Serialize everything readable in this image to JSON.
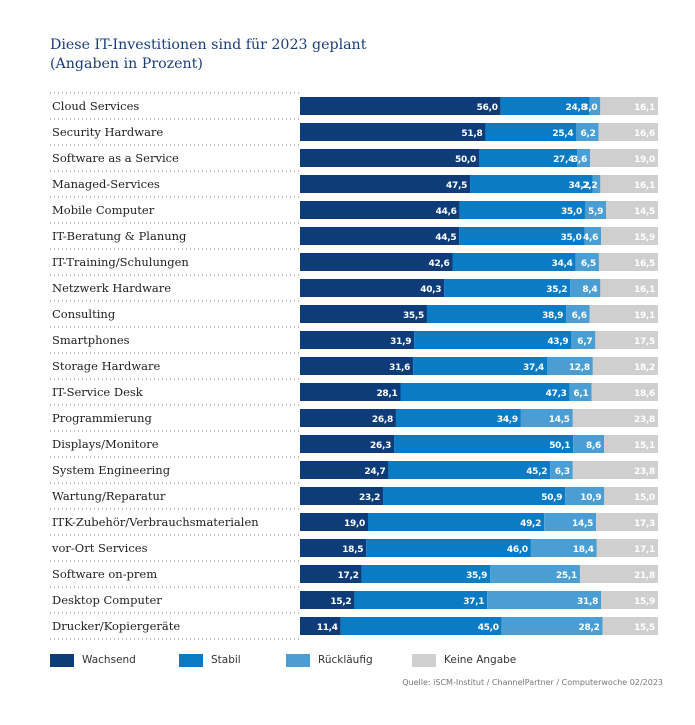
{
  "title_lines": [
    "Diese IT-Investitionen sind für 2023 geplant",
    "(Angaben in Prozent)"
  ],
  "colors": {
    "wachsend": "#0d3c78",
    "stabil": "#0a7bc4",
    "ruecklaeufig": "#4a9ed4",
    "keine_angabe": "#cfcfcf",
    "title": "#1a3e7a",
    "dots": "#8a8a8a"
  },
  "chart_data": {
    "type": "bar",
    "orientation": "horizontal",
    "stacked": true,
    "normalized": true,
    "title": "Diese IT-Investitionen sind für 2023 geplant",
    "subtitle": "(Angaben in Prozent)",
    "xlim": [
      0,
      100
    ],
    "categories": [
      "Cloud Services",
      "Security Hardware",
      "Software as a Service",
      "Managed-Services",
      "Mobile Computer",
      "IT-Beratung & Planung",
      "IT-Training/Schulungen",
      "Netzwerk Hardware",
      "Consulting",
      "Smartphones",
      "Storage Hardware",
      "IT-Service Desk",
      "Programmierung",
      "Displays/Monitore",
      "System Engineering",
      "Wartung/Reparatur",
      "ITK-Zubehör/Verbrauchsmaterialen",
      "vor-Ort Services",
      "Software on-prem",
      "Desktop Computer",
      "Drucker/Kopiergeräte"
    ],
    "series": [
      {
        "name": "Wachsend",
        "key": "wachsend",
        "labels": [
          "56,0",
          "51,8",
          "50,0",
          "47,5",
          "44,6",
          "44,5",
          "42,6",
          "40,3",
          "35,5",
          "31,9",
          "31,6",
          "28,1",
          "26,8",
          "26,3",
          "24,7",
          "23,2",
          "19,0",
          "18,5",
          "17,2",
          "15,2",
          "11,4"
        ],
        "values": [
          56.0,
          51.8,
          50.0,
          47.5,
          44.6,
          44.5,
          42.6,
          40.3,
          35.5,
          31.9,
          31.6,
          28.1,
          26.8,
          26.3,
          24.7,
          23.2,
          19.0,
          18.5,
          17.2,
          15.2,
          11.4
        ]
      },
      {
        "name": "Stabil",
        "key": "stabil",
        "labels": [
          "24,8",
          "25,4",
          "27,4",
          "34,2",
          "35,0",
          "35,0",
          "34,4",
          "35,2",
          "38,9",
          "43,9",
          "37,4",
          "47,3",
          "34,9",
          "50,1",
          "45,2",
          "50,9",
          "49,2",
          "46,0",
          "35,9",
          "37,1",
          "45,0"
        ],
        "values": [
          24.8,
          25.4,
          27.4,
          34.2,
          35.0,
          35.0,
          34.4,
          35.2,
          38.9,
          43.9,
          37.4,
          47.3,
          34.9,
          50.1,
          45.2,
          50.9,
          49.2,
          46.0,
          35.9,
          37.1,
          45.0
        ]
      },
      {
        "name": "Rückläufig",
        "key": "ruecklaeufig",
        "labels": [
          "3,0",
          "6,2",
          "3,6",
          "2,2",
          "5,9",
          "4,6",
          "6,5",
          "8,4",
          "6,6",
          "6,7",
          "12,8",
          "6,1",
          "14,5",
          "8,6",
          "6,3",
          "10,9",
          "14,5",
          "18,4",
          "25,1",
          "31,8",
          "28,2"
        ],
        "values": [
          3.0,
          6.2,
          3.6,
          2.2,
          5.9,
          4.6,
          6.5,
          8.4,
          6.6,
          6.7,
          12.8,
          6.1,
          14.5,
          8.6,
          6.3,
          10.9,
          14.5,
          18.4,
          25.1,
          31.8,
          28.2
        ]
      },
      {
        "name": "Keine Angabe",
        "key": "keine_angabe",
        "labels": [
          "16,1",
          "16,6",
          "19,0",
          "16,1",
          "14,5",
          "15,9",
          "16,5",
          "16,1",
          "19,1",
          "17,5",
          "18,2",
          "18,6",
          "23,8",
          "15,1",
          "23,8",
          "15,0",
          "17,3",
          "17,1",
          "21,8",
          "15,9",
          "15,5"
        ],
        "values": [
          16.1,
          16.6,
          19.0,
          16.1,
          14.5,
          15.9,
          16.5,
          16.1,
          19.1,
          17.5,
          18.2,
          18.6,
          23.8,
          15.1,
          23.8,
          15.0,
          17.3,
          17.1,
          21.8,
          15.9,
          15.5
        ]
      }
    ],
    "legend_position": "bottom"
  },
  "legend": [
    {
      "label": "Wachsend",
      "key": "wachsend"
    },
    {
      "label": "Stabil",
      "key": "stabil"
    },
    {
      "label": "Rückläufig",
      "key": "ruecklaeufig"
    },
    {
      "label": "Keine Angabe",
      "key": "keine_angabe"
    }
  ],
  "source": "Quelle: iSCM-Institut / ChannelPartner / Computerwoche 02/2023"
}
